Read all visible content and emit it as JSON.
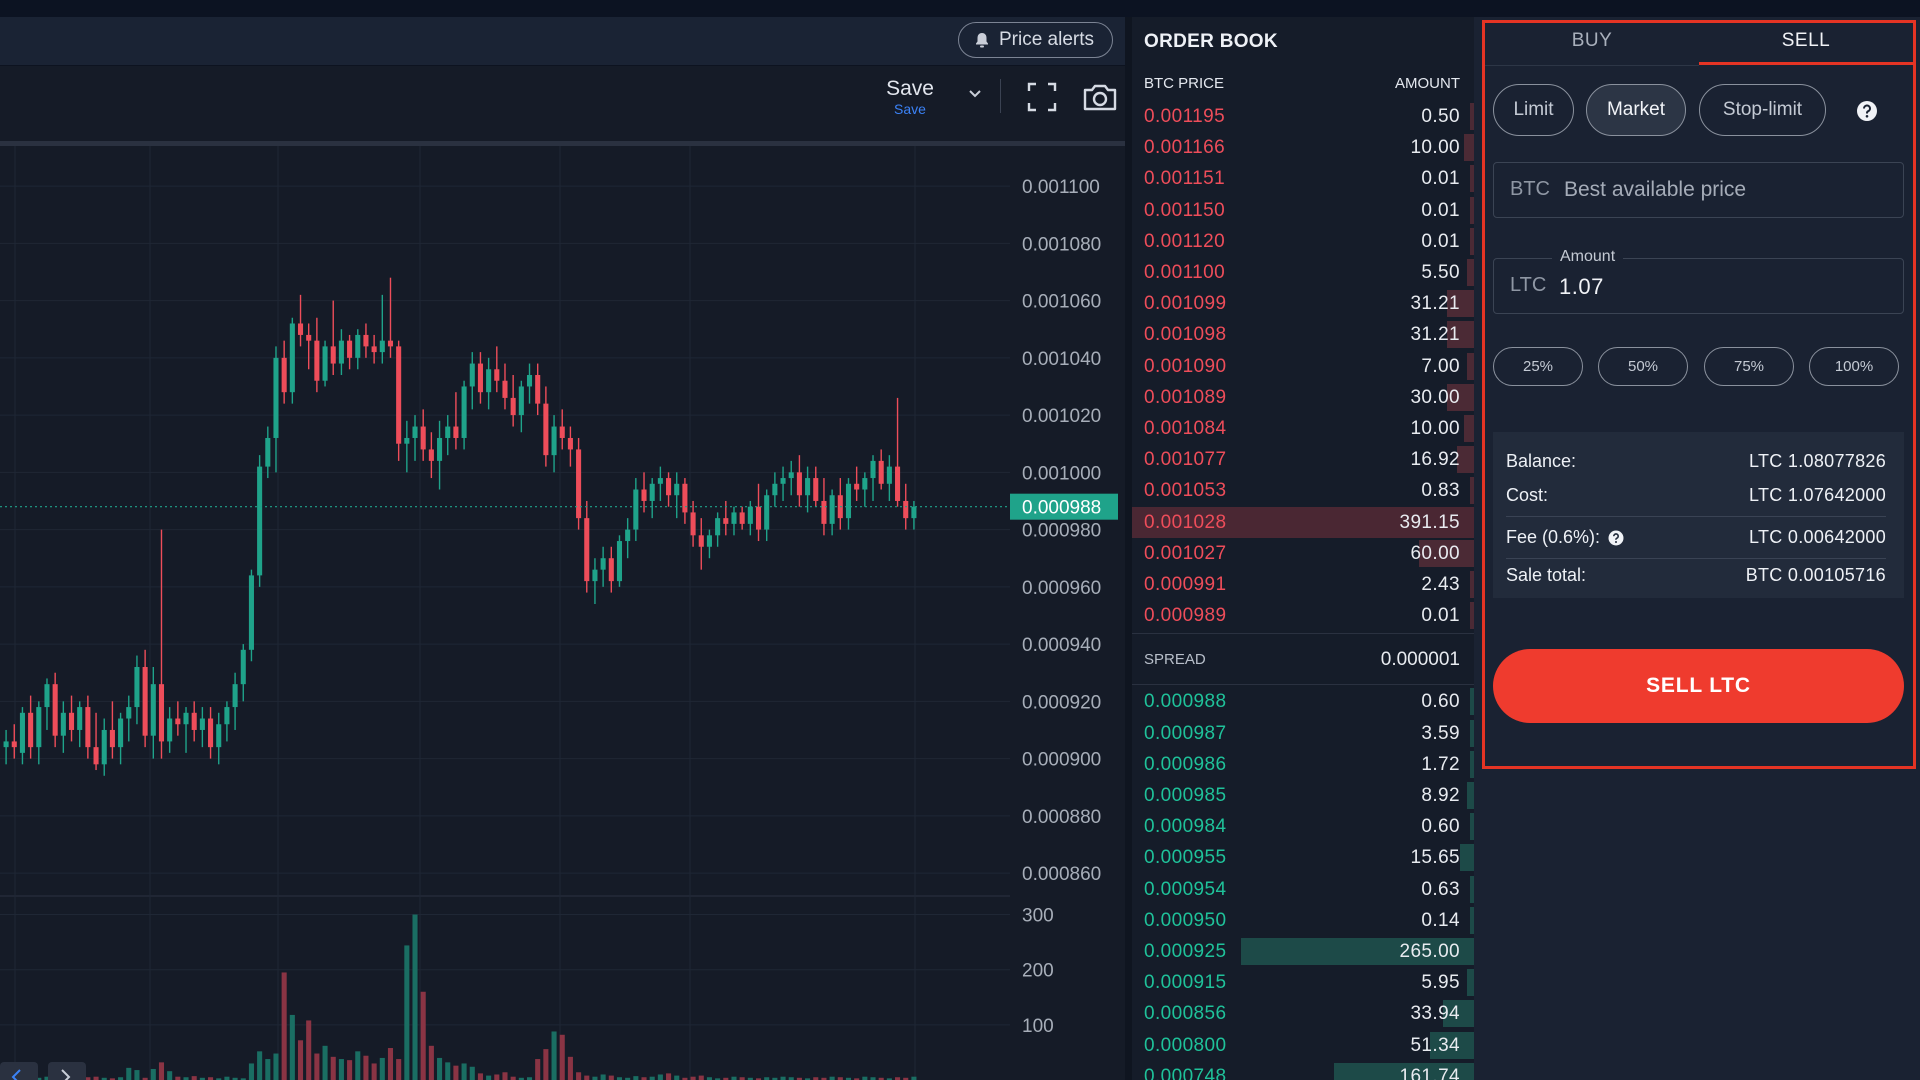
{
  "chart": {
    "price_alerts_label": "Price alerts",
    "save_label": "Save",
    "save_sub_label": "Save",
    "current_price_tag": "0.000988",
    "price_axis": [
      "0.001100",
      "0.001080",
      "0.001060",
      "0.001040",
      "0.001020",
      "0.001000",
      "0.000980",
      "0.000960",
      "0.000940",
      "0.000920",
      "0.000900",
      "0.000880",
      "0.000860"
    ],
    "volume_axis": [
      "300",
      "200",
      "100"
    ]
  },
  "chart_data": {
    "type": "candlestick",
    "price_range": [
      0.000852,
      0.001114
    ],
    "volume_range": [
      0,
      330
    ],
    "current_price": 0.000988,
    "candles": [
      {
        "o": 0.000904,
        "h": 0.00091,
        "l": 0.000898,
        "c": 0.000906
      },
      {
        "o": 0.000906,
        "h": 0.000912,
        "l": 0.0009,
        "c": 0.000904
      },
      {
        "o": 0.000902,
        "h": 0.000918,
        "l": 0.000898,
        "c": 0.000916
      },
      {
        "o": 0.000916,
        "h": 0.000922,
        "l": 0.0009,
        "c": 0.000904
      },
      {
        "o": 0.000904,
        "h": 0.00092,
        "l": 0.000898,
        "c": 0.000918
      },
      {
        "o": 0.000918,
        "h": 0.000928,
        "l": 0.00091,
        "c": 0.000926
      },
      {
        "o": 0.000926,
        "h": 0.00093,
        "l": 0.000904,
        "c": 0.000908
      },
      {
        "o": 0.000908,
        "h": 0.00092,
        "l": 0.000902,
        "c": 0.000916
      },
      {
        "o": 0.000916,
        "h": 0.000922,
        "l": 0.000906,
        "c": 0.00091
      },
      {
        "o": 0.00091,
        "h": 0.00092,
        "l": 0.000904,
        "c": 0.000918
      },
      {
        "o": 0.000918,
        "h": 0.000922,
        "l": 0.0009,
        "c": 0.000904
      },
      {
        "o": 0.000904,
        "h": 0.000916,
        "l": 0.000896,
        "c": 0.000898
      },
      {
        "o": 0.000898,
        "h": 0.000914,
        "l": 0.000894,
        "c": 0.00091
      },
      {
        "o": 0.00091,
        "h": 0.00092,
        "l": 0.0009,
        "c": 0.000904
      },
      {
        "o": 0.000904,
        "h": 0.000916,
        "l": 0.000898,
        "c": 0.000914
      },
      {
        "o": 0.000914,
        "h": 0.000922,
        "l": 0.000906,
        "c": 0.000918
      },
      {
        "o": 0.000918,
        "h": 0.000936,
        "l": 0.000912,
        "c": 0.000932
      },
      {
        "o": 0.000932,
        "h": 0.000938,
        "l": 0.000904,
        "c": 0.000908
      },
      {
        "o": 0.000908,
        "h": 0.000932,
        "l": 0.0009,
        "c": 0.000926
      },
      {
        "o": 0.000926,
        "h": 0.00098,
        "l": 0.0009,
        "c": 0.000906
      },
      {
        "o": 0.000906,
        "h": 0.000918,
        "l": 0.000902,
        "c": 0.000914
      },
      {
        "o": 0.000914,
        "h": 0.00092,
        "l": 0.000908,
        "c": 0.000912
      },
      {
        "o": 0.000912,
        "h": 0.000918,
        "l": 0.000902,
        "c": 0.000916
      },
      {
        "o": 0.000916,
        "h": 0.00092,
        "l": 0.000906,
        "c": 0.00091
      },
      {
        "o": 0.00091,
        "h": 0.000918,
        "l": 0.000904,
        "c": 0.000914
      },
      {
        "o": 0.000914,
        "h": 0.000918,
        "l": 0.0009,
        "c": 0.000904
      },
      {
        "o": 0.000904,
        "h": 0.000916,
        "l": 0.000898,
        "c": 0.000912
      },
      {
        "o": 0.000912,
        "h": 0.00092,
        "l": 0.000906,
        "c": 0.000918
      },
      {
        "o": 0.000918,
        "h": 0.00093,
        "l": 0.00091,
        "c": 0.000926
      },
      {
        "o": 0.000926,
        "h": 0.00094,
        "l": 0.00092,
        "c": 0.000938
      },
      {
        "o": 0.000938,
        "h": 0.000966,
        "l": 0.000934,
        "c": 0.000964
      },
      {
        "o": 0.000964,
        "h": 0.001006,
        "l": 0.00096,
        "c": 0.001002
      },
      {
        "o": 0.001002,
        "h": 0.001016,
        "l": 0.000998,
        "c": 0.001012
      },
      {
        "o": 0.001012,
        "h": 0.001044,
        "l": 0.001,
        "c": 0.00104
      },
      {
        "o": 0.00104,
        "h": 0.001046,
        "l": 0.001024,
        "c": 0.001028
      },
      {
        "o": 0.001028,
        "h": 0.001054,
        "l": 0.001024,
        "c": 0.001052
      },
      {
        "o": 0.001052,
        "h": 0.001062,
        "l": 0.001044,
        "c": 0.001048
      },
      {
        "o": 0.001048,
        "h": 0.001052,
        "l": 0.001036,
        "c": 0.001046
      },
      {
        "o": 0.001046,
        "h": 0.001054,
        "l": 0.001028,
        "c": 0.001032
      },
      {
        "o": 0.001032,
        "h": 0.001046,
        "l": 0.00103,
        "c": 0.001044
      },
      {
        "o": 0.001044,
        "h": 0.00106,
        "l": 0.001034,
        "c": 0.001038
      },
      {
        "o": 0.001038,
        "h": 0.00105,
        "l": 0.001034,
        "c": 0.001046
      },
      {
        "o": 0.001046,
        "h": 0.001048,
        "l": 0.001036,
        "c": 0.00104
      },
      {
        "o": 0.00104,
        "h": 0.00105,
        "l": 0.001036,
        "c": 0.001048
      },
      {
        "o": 0.001048,
        "h": 0.001052,
        "l": 0.00104,
        "c": 0.001044
      },
      {
        "o": 0.001044,
        "h": 0.001048,
        "l": 0.001038,
        "c": 0.001042
      },
      {
        "o": 0.001042,
        "h": 0.001062,
        "l": 0.001038,
        "c": 0.001046
      },
      {
        "o": 0.001046,
        "h": 0.001068,
        "l": 0.00104,
        "c": 0.001044
      },
      {
        "o": 0.001044,
        "h": 0.001046,
        "l": 0.001004,
        "c": 0.00101
      },
      {
        "o": 0.00101,
        "h": 0.001018,
        "l": 0.001,
        "c": 0.001012
      },
      {
        "o": 0.001012,
        "h": 0.00102,
        "l": 0.001004,
        "c": 0.001016
      },
      {
        "o": 0.001016,
        "h": 0.001022,
        "l": 0.001004,
        "c": 0.001008
      },
      {
        "o": 0.001008,
        "h": 0.001014,
        "l": 0.000998,
        "c": 0.001004
      },
      {
        "o": 0.001004,
        "h": 0.001018,
        "l": 0.000994,
        "c": 0.001012
      },
      {
        "o": 0.001012,
        "h": 0.00102,
        "l": 0.001006,
        "c": 0.001016
      },
      {
        "o": 0.001016,
        "h": 0.001028,
        "l": 0.001008,
        "c": 0.001012
      },
      {
        "o": 0.001012,
        "h": 0.001032,
        "l": 0.001008,
        "c": 0.00103
      },
      {
        "o": 0.00103,
        "h": 0.001042,
        "l": 0.001022,
        "c": 0.001038
      },
      {
        "o": 0.001038,
        "h": 0.001042,
        "l": 0.001024,
        "c": 0.001028
      },
      {
        "o": 0.001028,
        "h": 0.00104,
        "l": 0.001022,
        "c": 0.001036
      },
      {
        "o": 0.001036,
        "h": 0.001044,
        "l": 0.001028,
        "c": 0.001032
      },
      {
        "o": 0.001032,
        "h": 0.001038,
        "l": 0.001022,
        "c": 0.001026
      },
      {
        "o": 0.001026,
        "h": 0.001034,
        "l": 0.001016,
        "c": 0.00102
      },
      {
        "o": 0.00102,
        "h": 0.001032,
        "l": 0.001014,
        "c": 0.00103
      },
      {
        "o": 0.00103,
        "h": 0.001038,
        "l": 0.001024,
        "c": 0.001034
      },
      {
        "o": 0.001034,
        "h": 0.001038,
        "l": 0.00102,
        "c": 0.001024
      },
      {
        "o": 0.001024,
        "h": 0.00103,
        "l": 0.001002,
        "c": 0.001006
      },
      {
        "o": 0.001006,
        "h": 0.00102,
        "l": 0.001,
        "c": 0.001016
      },
      {
        "o": 0.001016,
        "h": 0.001022,
        "l": 0.001008,
        "c": 0.001012
      },
      {
        "o": 0.001012,
        "h": 0.001016,
        "l": 0.001002,
        "c": 0.001008
      },
      {
        "o": 0.001008,
        "h": 0.001012,
        "l": 0.00098,
        "c": 0.000984
      },
      {
        "o": 0.000984,
        "h": 0.00099,
        "l": 0.000958,
        "c": 0.000962
      },
      {
        "o": 0.000962,
        "h": 0.00097,
        "l": 0.000954,
        "c": 0.000966
      },
      {
        "o": 0.000966,
        "h": 0.000974,
        "l": 0.00096,
        "c": 0.00097
      },
      {
        "o": 0.00097,
        "h": 0.000974,
        "l": 0.000958,
        "c": 0.000962
      },
      {
        "o": 0.000962,
        "h": 0.000978,
        "l": 0.00096,
        "c": 0.000976
      },
      {
        "o": 0.000976,
        "h": 0.000984,
        "l": 0.00097,
        "c": 0.00098
      },
      {
        "o": 0.00098,
        "h": 0.000998,
        "l": 0.000976,
        "c": 0.000994
      },
      {
        "o": 0.000994,
        "h": 0.001,
        "l": 0.000986,
        "c": 0.00099
      },
      {
        "o": 0.00099,
        "h": 0.000998,
        "l": 0.000984,
        "c": 0.000996
      },
      {
        "o": 0.000996,
        "h": 0.001002,
        "l": 0.00099,
        "c": 0.000998
      },
      {
        "o": 0.000998,
        "h": 0.001,
        "l": 0.000988,
        "c": 0.000992
      },
      {
        "o": 0.000992,
        "h": 0.001,
        "l": 0.000984,
        "c": 0.000996
      },
      {
        "o": 0.000996,
        "h": 0.000998,
        "l": 0.000982,
        "c": 0.000986
      },
      {
        "o": 0.000986,
        "h": 0.00099,
        "l": 0.000974,
        "c": 0.000978
      },
      {
        "o": 0.000978,
        "h": 0.000984,
        "l": 0.000966,
        "c": 0.000974
      },
      {
        "o": 0.000974,
        "h": 0.00098,
        "l": 0.00097,
        "c": 0.000978
      },
      {
        "o": 0.000978,
        "h": 0.000986,
        "l": 0.000974,
        "c": 0.000984
      },
      {
        "o": 0.000984,
        "h": 0.00099,
        "l": 0.000978,
        "c": 0.000982
      },
      {
        "o": 0.000982,
        "h": 0.000988,
        "l": 0.000978,
        "c": 0.000986
      },
      {
        "o": 0.000986,
        "h": 0.000988,
        "l": 0.00098,
        "c": 0.000982
      },
      {
        "o": 0.000982,
        "h": 0.00099,
        "l": 0.000978,
        "c": 0.000988
      },
      {
        "o": 0.000988,
        "h": 0.000996,
        "l": 0.000976,
        "c": 0.00098
      },
      {
        "o": 0.00098,
        "h": 0.000994,
        "l": 0.000976,
        "c": 0.000992
      },
      {
        "o": 0.000992,
        "h": 0.001,
        "l": 0.000988,
        "c": 0.000996
      },
      {
        "o": 0.000996,
        "h": 0.001002,
        "l": 0.00099,
        "c": 0.000998
      },
      {
        "o": 0.000998,
        "h": 0.001004,
        "l": 0.000992,
        "c": 0.001
      },
      {
        "o": 0.001,
        "h": 0.001006,
        "l": 0.000988,
        "c": 0.000992
      },
      {
        "o": 0.000992,
        "h": 0.001002,
        "l": 0.000986,
        "c": 0.000998
      },
      {
        "o": 0.000998,
        "h": 0.001002,
        "l": 0.000988,
        "c": 0.00099
      },
      {
        "o": 0.00099,
        "h": 0.000998,
        "l": 0.000978,
        "c": 0.000982
      },
      {
        "o": 0.000982,
        "h": 0.000994,
        "l": 0.000978,
        "c": 0.000992
      },
      {
        "o": 0.000992,
        "h": 0.000998,
        "l": 0.00098,
        "c": 0.000984
      },
      {
        "o": 0.000984,
        "h": 0.000998,
        "l": 0.00098,
        "c": 0.000996
      },
      {
        "o": 0.000996,
        "h": 0.001002,
        "l": 0.00099,
        "c": 0.000994
      },
      {
        "o": 0.000994,
        "h": 0.001,
        "l": 0.000988,
        "c": 0.000998
      },
      {
        "o": 0.000998,
        "h": 0.001006,
        "l": 0.00099,
        "c": 0.001004
      },
      {
        "o": 0.001004,
        "h": 0.001008,
        "l": 0.000994,
        "c": 0.000996
      },
      {
        "o": 0.000996,
        "h": 0.001006,
        "l": 0.00099,
        "c": 0.001002
      },
      {
        "o": 0.001002,
        "h": 0.001026,
        "l": 0.000988,
        "c": 0.00099
      },
      {
        "o": 0.00099,
        "h": 0.000996,
        "l": 0.00098,
        "c": 0.000984
      },
      {
        "o": 0.000984,
        "h": 0.00099,
        "l": 0.00098,
        "c": 0.000988
      }
    ],
    "volumes": [
      4,
      3,
      5,
      3,
      4,
      6,
      3,
      5,
      4,
      3,
      5,
      6,
      4,
      3,
      5,
      22,
      18,
      4,
      20,
      32,
      16,
      6,
      5,
      7,
      4,
      5,
      3,
      6,
      4,
      3,
      30,
      52,
      38,
      48,
      195,
      118,
      72,
      108,
      48,
      62,
      42,
      38,
      36,
      52,
      44,
      30,
      40,
      58,
      38,
      244,
      300,
      160,
      62,
      40,
      32,
      26,
      30,
      24,
      12,
      8,
      10,
      14,
      6,
      4,
      5,
      38,
      56,
      88,
      82,
      42,
      14,
      8,
      6,
      10,
      8,
      5,
      4,
      7,
      5,
      6,
      10,
      12,
      8,
      4,
      6,
      8,
      5,
      3,
      4,
      6,
      5,
      4,
      3,
      5,
      4,
      6,
      5,
      4,
      3,
      5,
      4,
      6,
      5,
      4,
      3,
      6,
      5,
      4,
      3,
      5,
      4,
      6
    ]
  },
  "orderbook": {
    "title": "ORDER BOOK",
    "col_price": "BTC PRICE",
    "col_amount": "AMOUNT",
    "asks": [
      {
        "price": "0.001195",
        "amount": "0.50",
        "depth": 0.0
      },
      {
        "price": "0.001166",
        "amount": "10.00",
        "depth": 0.03
      },
      {
        "price": "0.001151",
        "amount": "0.01",
        "depth": 0.0
      },
      {
        "price": "0.001150",
        "amount": "0.01",
        "depth": 0.0
      },
      {
        "price": "0.001120",
        "amount": "0.01",
        "depth": 0.0
      },
      {
        "price": "0.001100",
        "amount": "5.50",
        "depth": 0.02
      },
      {
        "price": "0.001099",
        "amount": "31.21",
        "depth": 0.08
      },
      {
        "price": "0.001098",
        "amount": "31.21",
        "depth": 0.08
      },
      {
        "price": "0.001090",
        "amount": "7.00",
        "depth": 0.02
      },
      {
        "price": "0.001089",
        "amount": "30.00",
        "depth": 0.08
      },
      {
        "price": "0.001084",
        "amount": "10.00",
        "depth": 0.03
      },
      {
        "price": "0.001077",
        "amount": "16.92",
        "depth": 0.05
      },
      {
        "price": "0.001053",
        "amount": "0.83",
        "depth": 0.0
      },
      {
        "price": "0.001028",
        "amount": "391.15",
        "depth": 1.0
      },
      {
        "price": "0.001027",
        "amount": "60.00",
        "depth": 0.16
      },
      {
        "price": "0.000991",
        "amount": "2.43",
        "depth": 0.01
      },
      {
        "price": "0.000989",
        "amount": "0.01",
        "depth": 0.0
      }
    ],
    "spread_label": "SPREAD",
    "spread_value": "0.000001",
    "bids": [
      {
        "price": "0.000988",
        "amount": "0.60",
        "depth": 0.0
      },
      {
        "price": "0.000987",
        "amount": "3.59",
        "depth": 0.01
      },
      {
        "price": "0.000986",
        "amount": "1.72",
        "depth": 0.01
      },
      {
        "price": "0.000985",
        "amount": "8.92",
        "depth": 0.02
      },
      {
        "price": "0.000984",
        "amount": "0.60",
        "depth": 0.0
      },
      {
        "price": "0.000955",
        "amount": "15.65",
        "depth": 0.04
      },
      {
        "price": "0.000954",
        "amount": "0.63",
        "depth": 0.0
      },
      {
        "price": "0.000950",
        "amount": "0.14",
        "depth": 0.0
      },
      {
        "price": "0.000925",
        "amount": "265.00",
        "depth": 0.68
      },
      {
        "price": "0.000915",
        "amount": "5.95",
        "depth": 0.02
      },
      {
        "price": "0.000856",
        "amount": "33.94",
        "depth": 0.09
      },
      {
        "price": "0.000800",
        "amount": "51.34",
        "depth": 0.13
      },
      {
        "price": "0.000748",
        "amount": "161.74",
        "depth": 0.41
      }
    ]
  },
  "trade": {
    "tab_buy": "BUY",
    "tab_sell": "SELL",
    "order_types": [
      "Limit",
      "Market",
      "Stop-limit"
    ],
    "price_currency": "BTC",
    "price_placeholder": "Best available price",
    "amount_legend": "Amount",
    "amount_currency": "LTC",
    "amount_value": "1.07",
    "percents": [
      "25%",
      "50%",
      "75%",
      "100%"
    ],
    "summary": {
      "balance_label": "Balance:",
      "balance_value": "LTC  1.08077826",
      "cost_label": "Cost:",
      "cost_value": "LTC  1.07642000",
      "fee_label": "Fee (0.6%):",
      "fee_value": "LTC  0.00642000",
      "total_label": "Sale total:",
      "total_value": "BTC  0.00105716"
    },
    "sell_button": "SELL LTC"
  },
  "colors": {
    "up": "#1fa38a",
    "down": "#ee4d5a",
    "accent": "#e53424",
    "ask_text": "#ee4d5a",
    "bid_text": "#1fc29a"
  }
}
